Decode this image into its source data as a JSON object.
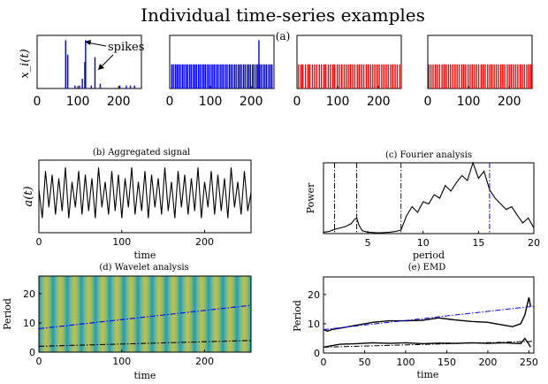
{
  "figure": {
    "title": "Individual time-series examples",
    "panel_a_label": "(a)"
  },
  "chart_data": [
    {
      "id": "a1",
      "type": "bar",
      "title": "",
      "ylabel": "x_i(t)",
      "xlim": [
        0,
        256
      ],
      "ylim": [
        0,
        1.1
      ],
      "xticks": [
        0,
        100,
        200
      ],
      "color": "#0000ff",
      "annotation": "spikes",
      "x": [
        70,
        75,
        93,
        104,
        111,
        117,
        119,
        133,
        142,
        155,
        203,
        219,
        229,
        239
      ],
      "values": [
        1.0,
        0.7,
        0.06,
        0.06,
        0.2,
        0.55,
        1.0,
        0.06,
        0.65,
        0.1,
        0.06,
        0.06,
        0.06,
        0.06
      ]
    },
    {
      "id": "a2",
      "type": "bar",
      "xlim": [
        0,
        256
      ],
      "ylim": [
        0,
        1.1
      ],
      "xticks": [
        0,
        100,
        200
      ],
      "color": "#0000ff",
      "x": [
        5,
        9,
        14,
        18,
        22,
        26,
        31,
        35,
        40,
        44,
        49,
        53,
        58,
        62,
        66,
        71,
        75,
        80,
        84,
        88,
        93,
        97,
        102,
        106,
        110,
        115,
        119,
        124,
        128,
        132,
        137,
        141,
        146,
        150,
        154,
        159,
        163,
        168,
        172,
        176,
        181,
        185,
        190,
        194,
        198,
        203,
        207,
        212,
        216,
        219,
        221,
        225,
        230,
        234,
        238,
        243,
        247,
        251
      ],
      "values": [
        0.5,
        0.5,
        0.5,
        0.5,
        0.5,
        0.5,
        0.5,
        0.5,
        0.5,
        0.5,
        0.5,
        0.5,
        0.5,
        0.5,
        0.5,
        0.5,
        0.5,
        0.5,
        0.5,
        0.5,
        0.5,
        0.5,
        0.5,
        0.5,
        0.5,
        0.5,
        0.5,
        0.5,
        0.5,
        0.5,
        0.5,
        0.5,
        0.5,
        0.5,
        0.5,
        0.5,
        0.5,
        0.5,
        0.5,
        0.5,
        0.5,
        0.5,
        0.5,
        0.5,
        0.5,
        0.5,
        0.5,
        0.5,
        0.5,
        1.0,
        0.5,
        0.5,
        0.5,
        0.5,
        0.5,
        0.5,
        0.5,
        0.5
      ]
    },
    {
      "id": "a3",
      "type": "bar",
      "xlim": [
        0,
        256
      ],
      "ylim": [
        0,
        1.1
      ],
      "xticks": [
        0,
        100,
        200
      ],
      "color": "#ff0000",
      "x": [
        4,
        10,
        14,
        21,
        27,
        31,
        38,
        43,
        48,
        55,
        60,
        66,
        70,
        77,
        82,
        88,
        92,
        99,
        104,
        110,
        116,
        121,
        126,
        131,
        137,
        142,
        148,
        153,
        159,
        164,
        170,
        175,
        181,
        186,
        191,
        197,
        202,
        208,
        213,
        219,
        224,
        230,
        235,
        241,
        246,
        252
      ],
      "values": [
        0.5,
        0.5,
        0.5,
        0.5,
        0.5,
        0.5,
        0.5,
        0.5,
        0.5,
        0.5,
        0.5,
        0.5,
        0.5,
        0.5,
        0.5,
        0.5,
        0.5,
        0.5,
        0.5,
        0.5,
        0.5,
        0.5,
        0.5,
        0.5,
        0.5,
        0.5,
        0.5,
        0.5,
        0.5,
        0.5,
        0.5,
        0.5,
        0.5,
        0.5,
        0.5,
        0.5,
        0.5,
        0.5,
        0.5,
        0.5,
        0.5,
        0.5,
        0.5,
        0.5,
        0.5,
        0.5
      ]
    },
    {
      "id": "a4",
      "type": "bar",
      "xlim": [
        0,
        256
      ],
      "ylim": [
        0,
        1.1
      ],
      "xticks": [
        0,
        100,
        200
      ],
      "color": "#ff0000",
      "x": [
        3,
        8,
        13,
        19,
        24,
        29,
        35,
        40,
        45,
        51,
        56,
        61,
        67,
        72,
        77,
        83,
        88,
        93,
        99,
        104,
        109,
        115,
        120,
        125,
        131,
        136,
        141,
        147,
        152,
        157,
        163,
        168,
        173,
        179,
        184,
        189,
        195,
        200,
        205,
        211,
        216,
        221,
        227,
        232,
        237,
        243,
        248,
        253
      ],
      "values": [
        0.5,
        0.5,
        0.5,
        0.5,
        0.5,
        0.5,
        0.5,
        0.5,
        0.5,
        0.5,
        0.5,
        0.5,
        0.5,
        0.5,
        0.5,
        0.5,
        0.5,
        0.5,
        0.5,
        0.5,
        0.5,
        0.5,
        0.5,
        0.5,
        0.5,
        0.5,
        0.5,
        0.5,
        0.5,
        0.5,
        0.5,
        0.5,
        0.5,
        0.5,
        0.5,
        0.5,
        0.5,
        0.5,
        0.5,
        0.5,
        0.5,
        0.5,
        0.5,
        0.5,
        0.5,
        0.5,
        0.5,
        0.5
      ]
    },
    {
      "id": "b",
      "type": "line",
      "title": "(b) Aggregated signal",
      "xlabel": "time",
      "ylabel": "a(t)",
      "xlim": [
        0,
        256
      ],
      "ylim": [
        0,
        1
      ],
      "xticks": [
        0,
        100,
        200
      ],
      "color": "#000000",
      "x": [
        0,
        4,
        8,
        12,
        16,
        20,
        24,
        28,
        32,
        36,
        40,
        44,
        48,
        52,
        56,
        60,
        64,
        68,
        72,
        76,
        80,
        84,
        88,
        92,
        96,
        100,
        104,
        108,
        112,
        116,
        120,
        124,
        128,
        132,
        136,
        140,
        144,
        148,
        152,
        156,
        160,
        164,
        168,
        172,
        176,
        180,
        184,
        188,
        192,
        196,
        200,
        204,
        208,
        212,
        216,
        220,
        224,
        228,
        232,
        236,
        240,
        244,
        248,
        252,
        256
      ],
      "y": [
        0.6,
        0.2,
        0.85,
        0.35,
        0.8,
        0.25,
        0.75,
        0.3,
        0.9,
        0.2,
        0.7,
        0.35,
        0.85,
        0.25,
        0.8,
        0.3,
        0.75,
        0.2,
        0.9,
        0.35,
        0.7,
        0.25,
        0.85,
        0.3,
        0.8,
        0.2,
        0.75,
        0.35,
        0.9,
        0.25,
        0.7,
        0.3,
        0.85,
        0.2,
        0.8,
        0.35,
        0.75,
        0.25,
        0.9,
        0.3,
        0.7,
        0.2,
        0.85,
        0.35,
        0.8,
        0.25,
        0.75,
        0.3,
        0.9,
        0.2,
        0.7,
        0.35,
        0.85,
        0.25,
        0.8,
        0.3,
        0.75,
        0.2,
        0.9,
        0.35,
        0.7,
        0.25,
        0.85,
        0.3,
        0.55
      ]
    },
    {
      "id": "c",
      "type": "line",
      "title": "(c) Fourier analysis",
      "xlabel": "period",
      "ylabel": "Power",
      "xlim": [
        1,
        20
      ],
      "ylim": [
        0,
        1
      ],
      "xticks": [
        5,
        10,
        15,
        20
      ],
      "color": "#000000",
      "vlines": [
        {
          "x": 2.0,
          "color": "#000000",
          "style": "dashdot"
        },
        {
          "x": 4.0,
          "color": "#000000",
          "style": "dashdot"
        },
        {
          "x": 8.0,
          "color": "#0000ff",
          "style": "dashdot"
        },
        {
          "x": 16.0,
          "color": "#0000ff",
          "style": "dashdot"
        }
      ],
      "x": [
        1.0,
        1.5,
        2.0,
        2.5,
        3.0,
        3.5,
        3.8,
        4.0,
        4.2,
        4.5,
        5.0,
        6.0,
        7.0,
        7.5,
        8.0,
        8.5,
        9.0,
        9.5,
        10.0,
        10.5,
        11.0,
        11.5,
        12.0,
        12.5,
        13.0,
        13.5,
        14.0,
        14.5,
        15.0,
        15.5,
        16.0,
        16.5,
        17.0,
        17.5,
        18.0,
        18.5,
        19.0,
        19.5,
        20.0
      ],
      "y": [
        0.02,
        0.03,
        0.06,
        0.08,
        0.1,
        0.14,
        0.2,
        0.22,
        0.12,
        0.04,
        0.02,
        0.01,
        0.02,
        0.03,
        0.05,
        0.25,
        0.38,
        0.3,
        0.45,
        0.42,
        0.55,
        0.5,
        0.68,
        0.6,
        0.72,
        0.82,
        0.75,
        1.0,
        0.78,
        0.88,
        0.62,
        0.5,
        0.42,
        0.34,
        0.38,
        0.26,
        0.15,
        0.22,
        0.08
      ]
    },
    {
      "id": "d",
      "type": "heatmap",
      "title": "(d) Wavelet analysis",
      "xlabel": "time",
      "ylabel": "Period",
      "xlim": [
        0,
        256
      ],
      "ylim": [
        0,
        26
      ],
      "xticks": [
        0,
        100,
        200
      ],
      "yticks": [
        0,
        10,
        20
      ],
      "lines": [
        {
          "x": [
            0,
            256
          ],
          "y": [
            8,
            16
          ],
          "color": "#0000ff",
          "style": "dashdot"
        },
        {
          "x": [
            0,
            256
          ],
          "y": [
            2,
            4
          ],
          "color": "#000000",
          "style": "dashdot"
        }
      ]
    },
    {
      "id": "e",
      "type": "line",
      "title": "(e) EMD",
      "xlabel": "time",
      "ylabel": "Period",
      "xlim": [
        0,
        256
      ],
      "ylim": [
        0,
        26
      ],
      "xticks": [
        0,
        50,
        100,
        150,
        200,
        250
      ],
      "yticks": [
        0,
        10,
        20
      ],
      "series": [
        {
          "x": [
            0,
            5,
            10,
            20,
            40,
            60,
            80,
            100,
            120,
            140,
            160,
            180,
            200,
            210,
            220,
            230,
            240,
            245,
            250,
            252
          ],
          "y": [
            8,
            7.5,
            8,
            8.5,
            9.5,
            10.5,
            11,
            11,
            11.2,
            12,
            11.3,
            10.8,
            10.5,
            10,
            9.5,
            9,
            10,
            13,
            19,
            16
          ],
          "color": "#000000",
          "style": "solid"
        },
        {
          "x": [
            0,
            10,
            20,
            40,
            60,
            80,
            100,
            120,
            140,
            160,
            180,
            200,
            220,
            240,
            245,
            250,
            252
          ],
          "y": [
            2,
            2.5,
            3,
            3.2,
            3.5,
            3.3,
            3.5,
            3.2,
            3.4,
            3.3,
            3.5,
            3.3,
            3.5,
            3.2,
            5,
            3,
            2
          ],
          "color": "#000000",
          "style": "solid"
        },
        {
          "x": [
            0,
            256
          ],
          "y": [
            8,
            16
          ],
          "color": "#0000ff",
          "style": "dashdot"
        },
        {
          "x": [
            0,
            256
          ],
          "y": [
            2,
            4
          ],
          "color": "#000000",
          "style": "dashdot"
        }
      ]
    }
  ]
}
